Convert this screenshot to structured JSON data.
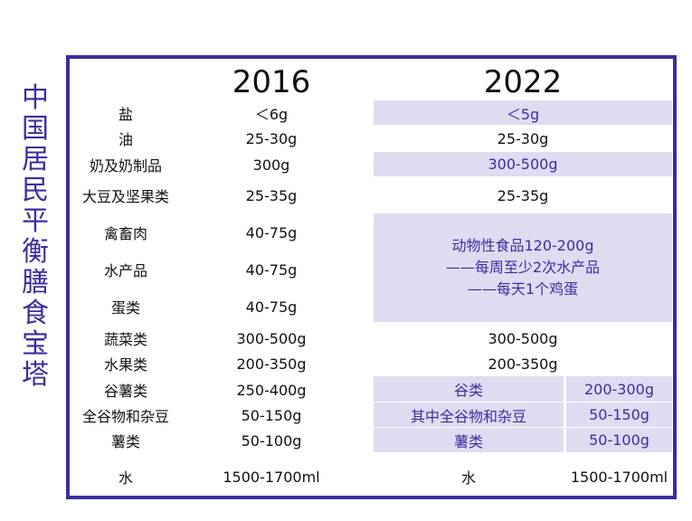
{
  "title": "中国居民平衡膳食宝塔",
  "headers": [
    "2016",
    "2022"
  ],
  "rows_2016": [
    [
      "盐",
      "＜6g"
    ],
    [
      "油",
      "25-30g"
    ],
    [
      "奶及奶制品",
      "300g"
    ],
    [
      "大豆及坚果类",
      "25-35g"
    ],
    [
      "禽畜肉",
      "40-75g"
    ],
    [
      "水产品",
      "40-75g"
    ],
    [
      "蛋类",
      "40-75g"
    ],
    [
      "蔬菜类",
      "300-500g"
    ],
    [
      "水果类",
      "200-350g"
    ],
    [
      "谷薯类",
      "250-400g"
    ],
    [
      "全谷物和杂豆",
      "50-150g"
    ],
    [
      "薯类",
      "50-100g"
    ],
    [
      "水",
      "1500-1700ml"
    ]
  ],
  "cells_2022": [
    [
      "＜5g"
    ],
    [
      "25-30g"
    ],
    [
      "300-500g"
    ],
    [
      "25-35g"
    ],
    [
      "动物性食品120-200g",
      "——每周至少2次水产品",
      "——每天1个鸡蛋"
    ],
    [
      "300-500g"
    ],
    [
      "200-350g"
    ],
    [
      "谷类",
      "200-300g"
    ],
    [
      "其中全谷物和杂豆",
      "50-150g"
    ],
    [
      "薯类",
      "50-100g"
    ],
    [
      "水",
      "1500-1700ml"
    ]
  ]
}
